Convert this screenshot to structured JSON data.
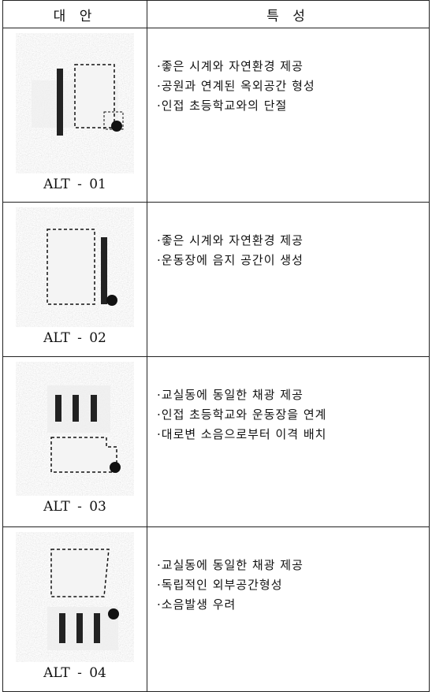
{
  "header": [
    "대 안",
    "특 성"
  ],
  "rows": [
    {
      "label": "ALT - 01",
      "features": [
        "·좋은 시계와 자연환경 제공",
        "·공원과 연계된 옥외공간 형성",
        "·인접 초등학교와의 단절"
      ]
    },
    {
      "label": "ALT - 02",
      "features": [
        "·좋은 시계와 자연환경 제공",
        "·운동장에 음지 공간이 생성"
      ]
    },
    {
      "label": "ALT - 03",
      "features": [
        "·교실동에 동일한 채광 제공",
        "·인접 초등학교와 운동장을 연계",
        "·대로변 소음으로부터 이격 배치"
      ]
    },
    {
      "label": "ALT - 04",
      "features": [
        "·교실동에 동일한 채광 제공",
        "·독립적인 외부공간형성",
        "·소음발생 우려"
      ]
    }
  ]
}
